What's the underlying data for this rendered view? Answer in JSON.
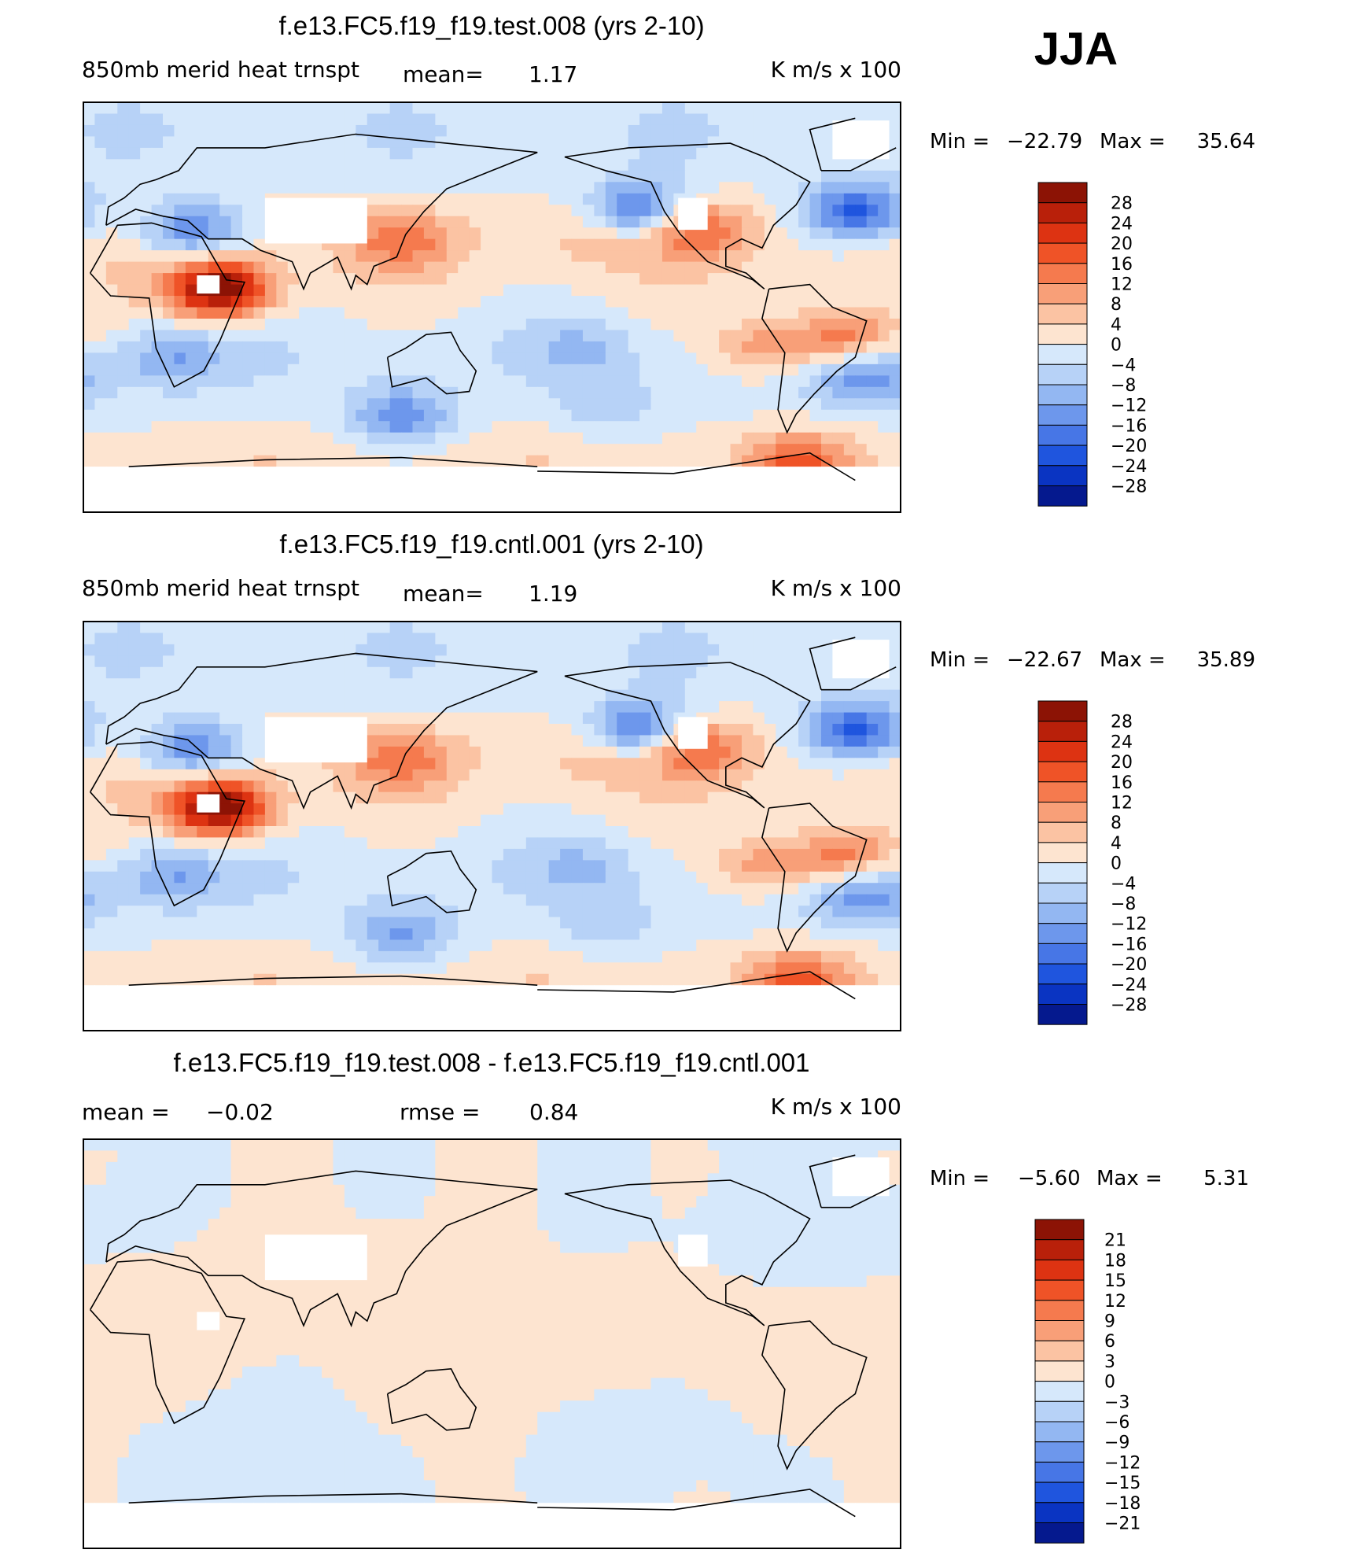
{
  "season": "JJA",
  "colors": {
    "warm": [
      "#fde4d0",
      "#fbc3a3",
      "#f89f78",
      "#f57a4e",
      "#ef5327",
      "#dd3312",
      "#b9200a",
      "#8c1305"
    ],
    "cool": [
      "#d6e8fb",
      "#b7d2f7",
      "#93b7f2",
      "#6d97ec",
      "#4776e6",
      "#1f55de",
      "#0a34c2",
      "#05198e"
    ],
    "diff_warm": [
      "#fde4d0",
      "#fbc3a3",
      "#f89f78",
      "#f57a4e",
      "#ef5327",
      "#dd3312",
      "#b9200a",
      "#8c1305"
    ],
    "diff_cool": [
      "#d6e8fb",
      "#b7d2f7",
      "#93b7f2",
      "#6d97ec",
      "#4776e6",
      "#1f55de",
      "#0a34c2",
      "#05198e"
    ],
    "missing": "#ffffff",
    "coast": "#000000"
  },
  "chart_data": [
    {
      "type": "heatmap",
      "title": "f.e13.FC5.f19_f19.test.008 (yrs 2-10)",
      "left_label": "850mb  merid  heat  trnspt",
      "stat1_label": "mean=",
      "stat1_value": "1.17",
      "units": "K  m/s  x  100",
      "min_label": "Min  =",
      "min_value": "−22.79",
      "max_label": "Max  =",
      "max_value": "35.64",
      "levels": [
        "28",
        "24",
        "20",
        "16",
        "12",
        "8",
        "4",
        "0",
        "−4",
        "−8",
        "−12",
        "−16",
        "−20",
        "−24",
        "−28"
      ],
      "features": [
        {
          "lon": 40,
          "lat": 8,
          "value": 32
        },
        {
          "lon": 28,
          "lat": 34,
          "value": -18
        },
        {
          "lon": -135,
          "lat": 42,
          "value": -22
        },
        {
          "lon": -40,
          "lat": 42,
          "value": -22
        },
        {
          "lon": -45,
          "lat": -12,
          "value": 16
        },
        {
          "lon": 120,
          "lat": 30,
          "value": 12
        },
        {
          "lon": -112,
          "lat": 35,
          "value": 16
        },
        {
          "lon": -150,
          "lat": 32,
          "value": 6
        },
        {
          "lon": -80,
          "lat": -18,
          "value": 12
        },
        {
          "lon": -35,
          "lat": -32,
          "value": -12
        },
        {
          "lon": 120,
          "lat": -48,
          "value": -14
        },
        {
          "lon": 20,
          "lat": -22,
          "value": -10
        },
        {
          "lon": -150,
          "lat": -45,
          "value": -6
        },
        {
          "lon": -65,
          "lat": -68,
          "value": 14
        },
        {
          "lon": -160,
          "lat": -18,
          "value": -6
        }
      ]
    },
    {
      "type": "heatmap",
      "title": "f.e13.FC5.f19_f19.cntl.001 (yrs 2-10)",
      "left_label": "850mb  merid  heat  trnspt",
      "stat1_label": "mean=",
      "stat1_value": "1.19",
      "units": "K  m/s  x  100",
      "min_label": "Min  =",
      "min_value": "−22.67",
      "max_label": "Max  =",
      "max_value": "35.89",
      "levels": [
        "28",
        "24",
        "20",
        "16",
        "12",
        "8",
        "4",
        "0",
        "−4",
        "−8",
        "−12",
        "−16",
        "−20",
        "−24",
        "−28"
      ],
      "features": [
        {
          "lon": 40,
          "lat": 8,
          "value": 32
        },
        {
          "lon": 28,
          "lat": 34,
          "value": -18
        },
        {
          "lon": -135,
          "lat": 42,
          "value": -22
        },
        {
          "lon": -40,
          "lat": 42,
          "value": -22
        },
        {
          "lon": -45,
          "lat": -12,
          "value": 16
        },
        {
          "lon": 120,
          "lat": 30,
          "value": 12
        },
        {
          "lon": -112,
          "lat": 35,
          "value": 16
        },
        {
          "lon": -150,
          "lat": 32,
          "value": 6
        },
        {
          "lon": -80,
          "lat": -18,
          "value": 12
        },
        {
          "lon": -35,
          "lat": -32,
          "value": -12
        },
        {
          "lon": 120,
          "lat": -48,
          "value": -12
        },
        {
          "lon": 20,
          "lat": -22,
          "value": -10
        },
        {
          "lon": -150,
          "lat": -45,
          "value": -6
        },
        {
          "lon": -65,
          "lat": -68,
          "value": 14
        },
        {
          "lon": -160,
          "lat": -18,
          "value": -6
        }
      ]
    },
    {
      "type": "heatmap",
      "title": "f.e13.FC5.f19_f19.test.008 - f.e13.FC5.f19_f19.cntl.001",
      "left_label": "mean  =",
      "left_value": "−0.02",
      "stat1_label": "rmse  =",
      "stat1_value": "0.84",
      "units": "K  m/s  x  100",
      "min_label": "Min  =",
      "min_value": "−5.60",
      "max_label": "Max  =",
      "max_value": "5.31",
      "levels": [
        "21",
        "18",
        "15",
        "12",
        "9",
        "6",
        "3",
        "0",
        "−3",
        "−6",
        "−9",
        "−12",
        "−15",
        "−18",
        "−21"
      ],
      "features": [
        {
          "lon": 0,
          "lat": 10,
          "value": 1.5
        },
        {
          "lon": 90,
          "lat": 25,
          "value": 1.5
        },
        {
          "lon": -120,
          "lat": 10,
          "value": 1.5
        },
        {
          "lon": -30,
          "lat": -20,
          "value": 1.5
        },
        {
          "lon": 150,
          "lat": -30,
          "value": 1.5
        },
        {
          "lon": 60,
          "lat": -40,
          "value": -1.5
        },
        {
          "lon": -150,
          "lat": -40,
          "value": -1.5
        },
        {
          "lon": -60,
          "lat": 45,
          "value": -1.5
        }
      ]
    }
  ]
}
